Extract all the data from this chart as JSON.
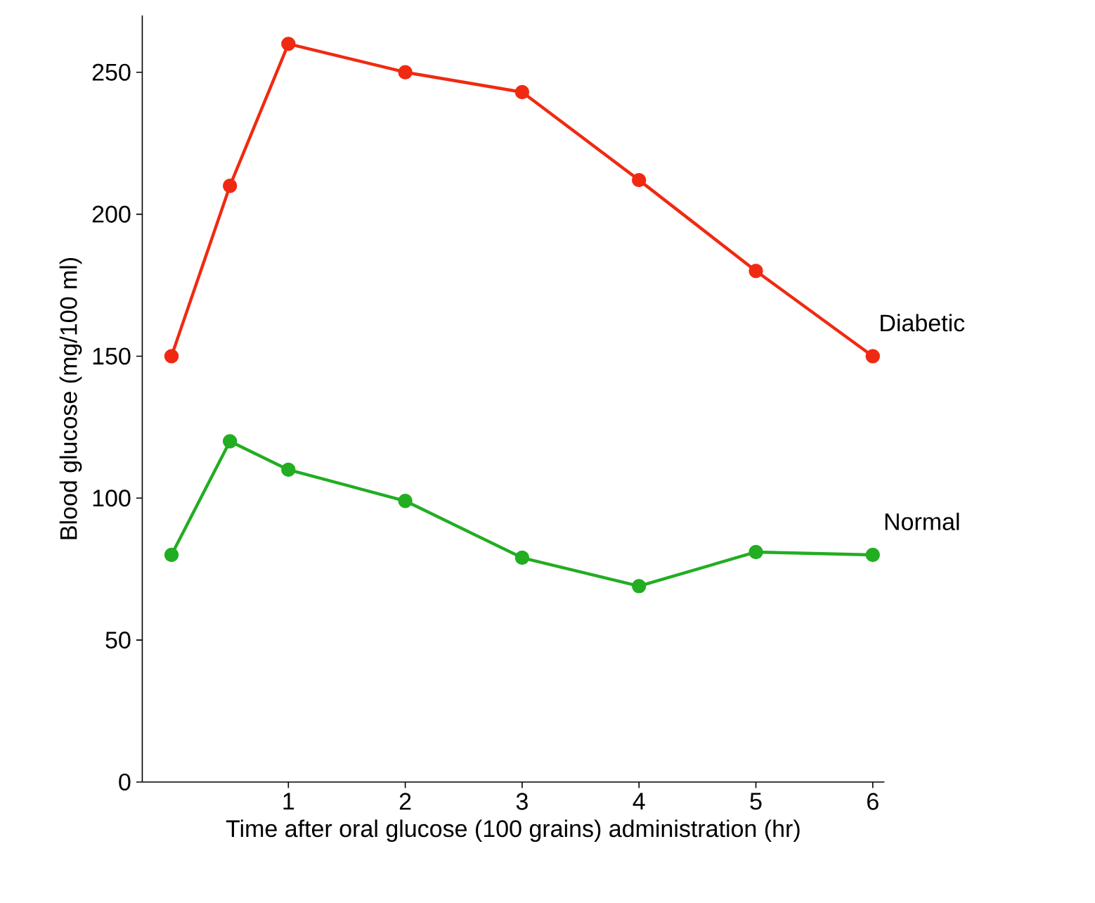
{
  "chart_data": {
    "type": "line",
    "xlabel": "Time after oral glucose (100 grains) administration (hr)",
    "ylabel": "Blood glucose (mg/100 ml)",
    "x": [
      0,
      0.5,
      1,
      2,
      3,
      4,
      5,
      6
    ],
    "series": [
      {
        "name": "Diabetic",
        "color": "#f02a12",
        "values": [
          150,
          210,
          260,
          250,
          243,
          212,
          180,
          150
        ]
      },
      {
        "name": "Normal",
        "color": "#22ad22",
        "values": [
          80,
          120,
          110,
          99,
          79,
          69,
          81,
          80
        ]
      }
    ],
    "xlim": [
      -0.25,
      6.1
    ],
    "ylim": [
      0,
      270
    ],
    "xticks": [
      1,
      2,
      3,
      4,
      5,
      6
    ],
    "yticks": [
      0,
      50,
      100,
      150,
      200,
      250
    ],
    "marker": "circle",
    "line_style": "solid",
    "grid": false
  }
}
